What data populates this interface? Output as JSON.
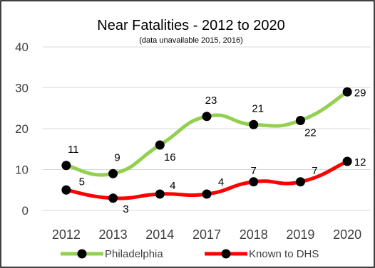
{
  "chart_data": {
    "type": "line",
    "title": "Near Fatalities - 2012 to 2020",
    "subtitle": "(data unavailable 2015, 2016)",
    "categories": [
      "2012",
      "2013",
      "2014",
      "2017",
      "2018",
      "2019",
      "2020"
    ],
    "ylim": [
      0,
      40
    ],
    "yticks": [
      0,
      10,
      20,
      30,
      40
    ],
    "grid": true,
    "legend_position": "bottom",
    "series": [
      {
        "name": "Philadelphia",
        "values": [
          11,
          9,
          16,
          23,
          21,
          22,
          29
        ],
        "color": "#92d050",
        "marker_color": "#000000"
      },
      {
        "name": "Known to DHS",
        "values": [
          5,
          3,
          4,
          4,
          7,
          7,
          12
        ],
        "color": "#ff0000",
        "marker_color": "#000000"
      }
    ]
  }
}
